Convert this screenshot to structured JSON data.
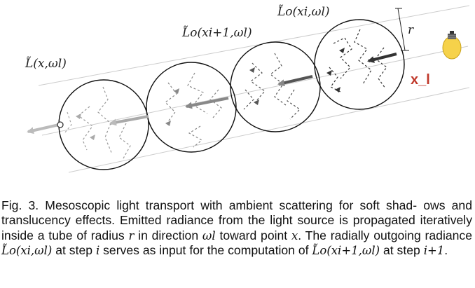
{
  "diagram": {
    "label_point": "L̃(x,ωl)",
    "label_next": "L̃o(xi+1,ωl)",
    "label_current": "L̃o(xi,ωl)",
    "label_radius": "r",
    "label_light_point": "x_l",
    "light_icon": "light-bulb-icon",
    "colors": {
      "accent_label": "#c0392b",
      "bulb": "#f6d24a",
      "arrow_light": "#bbbbbb",
      "arrow_mid": "#888888",
      "arrow_dark": "#333333",
      "circle": "#111111"
    }
  },
  "caption": {
    "line1": "Fig. 3. Mesoscopic light transport with ambient scattering for soft shad-",
    "line2": "ows and translucency effects. Emitted radiance from the light source",
    "line3_pre": "is propagated iteratively inside a tube of radius",
    "sym_r": "r",
    "line3_mid": "in direction",
    "sym_omega": "ωl",
    "line3_post": "toward",
    "line4_pre": "point",
    "sym_x": "x",
    "line4_mid": ". The radially outgoing radiance",
    "sym_Lo_i": "L̃o(xi,ωl)",
    "line4_mid2": "at step",
    "sym_i": "i",
    "line4_post": "serves as input",
    "line5_pre": "for the computation of",
    "sym_Lo_next": "L̃o(xi+1,ωl)",
    "line5_mid": "at step",
    "sym_step": "i+1",
    "line5_post": "."
  }
}
